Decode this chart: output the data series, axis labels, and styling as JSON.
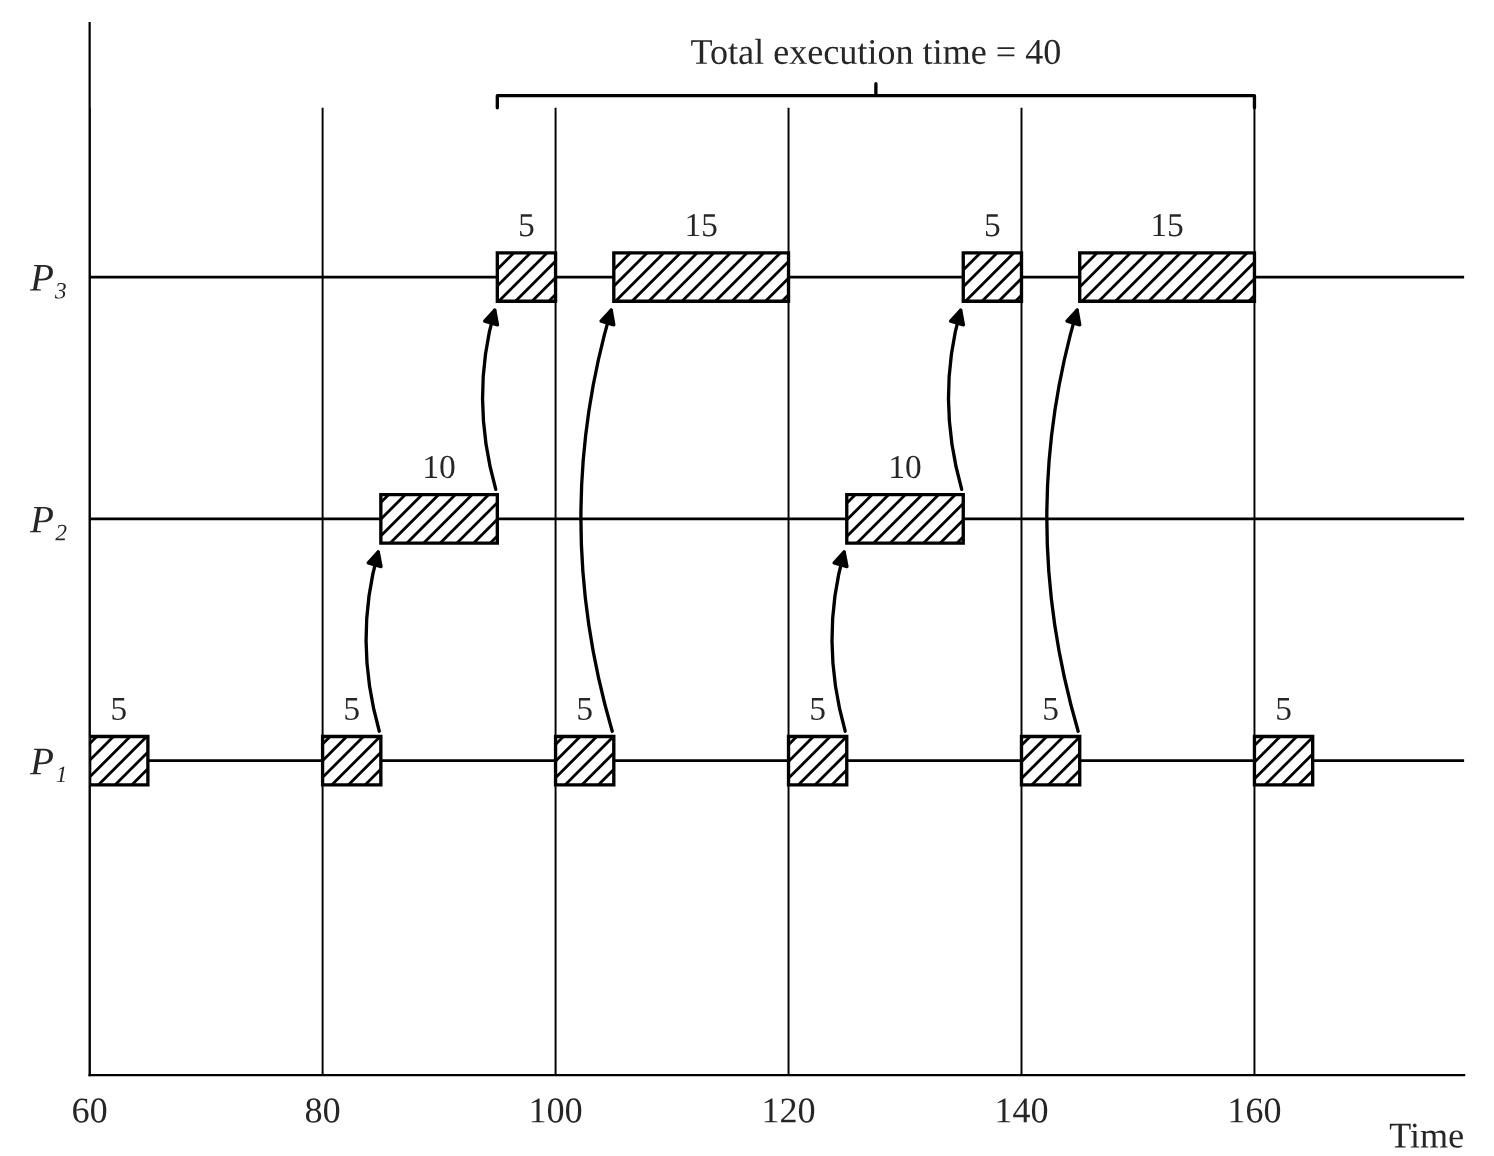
{
  "chart_data": {
    "type": "bar",
    "orientation": "horizontal",
    "xlabel": "Time",
    "categories": [
      "P₃",
      "P₂",
      "P₁"
    ],
    "series": [
      {
        "color": "#000000",
        "values": [
          5,
          null,
          5
        ],
        "base": [
          95,
          null,
          60
        ]
      },
      {
        "color": "#000000",
        "values": [
          15,
          10,
          5
        ],
        "base": [
          105,
          85,
          80
        ]
      },
      {
        "color": "#000000",
        "values": [
          5,
          10,
          5
        ],
        "base": [
          135,
          125,
          100
        ]
      },
      {
        "color": "#000000",
        "values": [
          15,
          null,
          5
        ],
        "base": [
          145,
          null,
          120
        ]
      },
      {
        "color": "#000000",
        "values": [
          null,
          null,
          5
        ],
        "base": [
          null,
          null,
          140
        ]
      },
      {
        "color": "#000000",
        "values": [
          null,
          null,
          5
        ],
        "base": [
          null,
          null,
          160
        ]
      }
    ],
    "xlim": [
      60,
      178
    ],
    "xticks": [
      60,
      80,
      100,
      120,
      140,
      160
    ],
    "grid": true,
    "data_labels": true,
    "annotations": [
      "Total execution time = 40"
    ]
  }
}
